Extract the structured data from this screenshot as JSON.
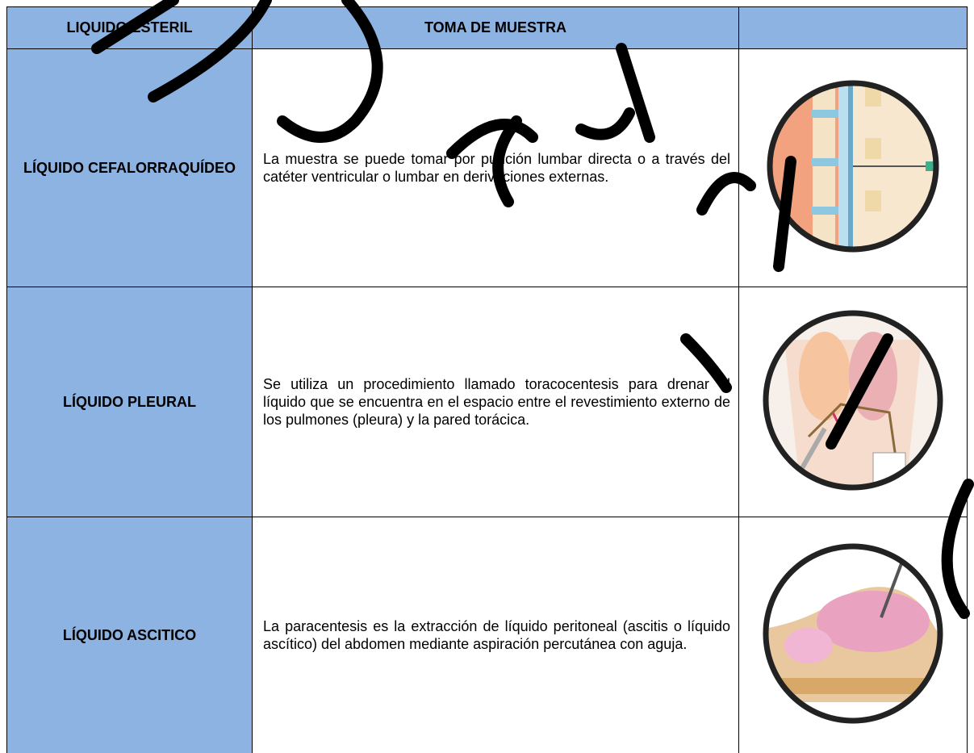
{
  "table": {
    "header": [
      "LIQUIDO ESTERIL",
      "TOMA DE MUESTRA"
    ],
    "rows": [
      [
        "LÍQUIDO CEFALORRAQUÍDEO",
        "La muestra se puede tomar por punción lumbar directa o a través del catéter ventricular o lumbar en derivaciones externas."
      ],
      [
        "LÍQUIDO PLEURAL",
        "Se utiliza un procedimiento llamado toracocentesis para drenar el líquido que se encuentra en el espacio entre el revestimiento externo de los pulmones (pleura) y la pared torácica."
      ],
      [
        "LÍQUIDO ASCITICO",
        "La paracentesis es la extracción de líquido peritoneal (ascitis o líquido ascítico) del abdomen mediante aspiración percutánea con aguja."
      ]
    ]
  }
}
